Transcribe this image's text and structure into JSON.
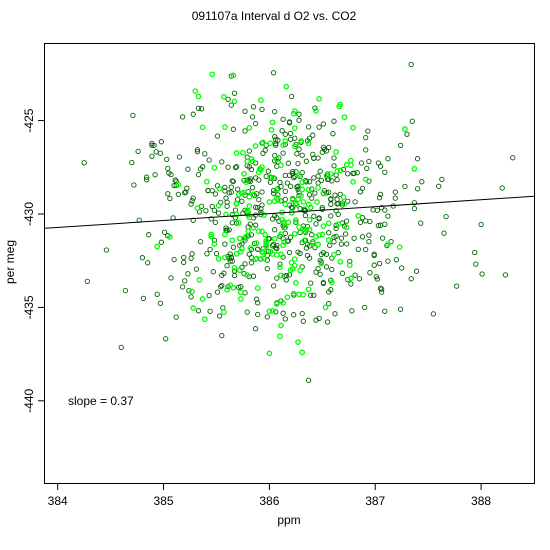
{
  "chart_data": {
    "type": "scatter",
    "title": "091107a   Interval d O2 vs. CO2",
    "xlabel": "ppm",
    "ylabel": "per meg",
    "xlim": [
      383.88,
      388.5
    ],
    "ylim": [
      -444.4,
      -420.9
    ],
    "x_ticks": [
      384,
      385,
      386,
      387,
      388
    ],
    "y_ticks": [
      -425,
      -430,
      -435,
      -440
    ],
    "annotation": "slope =  0.37",
    "fit_line": {
      "slope": 0.37,
      "intercept": -572.8
    },
    "colors": {
      "dark_points": "#006400",
      "bright_points": "#00ff00",
      "line": "#000000"
    },
    "grid": false,
    "legend": "none",
    "series": [
      {
        "color_key": "dark_points",
        "points": []
      },
      {
        "color_key": "bright_points",
        "points": []
      }
    ]
  }
}
